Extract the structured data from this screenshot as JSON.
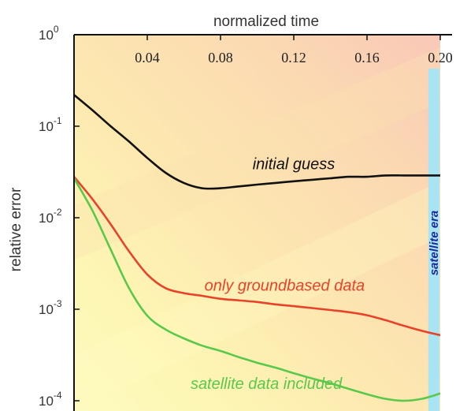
{
  "chart_data": {
    "type": "line",
    "xlabel": "normalized time",
    "ylabel": "relative error",
    "xlim": [
      0,
      0.2
    ],
    "ylog": true,
    "ylim": [
      0.0001,
      1
    ],
    "x_ticks": [
      0.04,
      0.08,
      0.12,
      0.16,
      0.2
    ],
    "x_tick_labels": [
      "0.04",
      "0.08",
      "0.12",
      "0.16",
      "0.20"
    ],
    "y_ticks": [
      1,
      0.1,
      0.01,
      0.001,
      0.0001
    ],
    "y_tick_labels": [
      {
        "base": "10",
        "exp": "0"
      },
      {
        "base": "10",
        "exp": "-1"
      },
      {
        "base": "10",
        "exp": "-2"
      },
      {
        "base": "10",
        "exp": "-3"
      },
      {
        "base": "10",
        "exp": "-4"
      }
    ],
    "series": [
      {
        "name": "initial guess",
        "color": "#111111",
        "x": [
          0,
          0.01,
          0.02,
          0.03,
          0.04,
          0.05,
          0.06,
          0.07,
          0.08,
          0.09,
          0.1,
          0.11,
          0.12,
          0.13,
          0.14,
          0.15,
          0.16,
          0.17,
          0.18,
          0.19,
          0.2
        ],
        "y": [
          0.22,
          0.15,
          0.1,
          0.068,
          0.045,
          0.031,
          0.024,
          0.021,
          0.021,
          0.022,
          0.023,
          0.024,
          0.025,
          0.026,
          0.027,
          0.028,
          0.028,
          0.029,
          0.029,
          0.029,
          0.029
        ]
      },
      {
        "name": "only groundbased data",
        "color": "#e8422a",
        "x": [
          0,
          0.01,
          0.02,
          0.03,
          0.04,
          0.05,
          0.06,
          0.07,
          0.08,
          0.09,
          0.1,
          0.11,
          0.12,
          0.13,
          0.14,
          0.15,
          0.16,
          0.17,
          0.18,
          0.19,
          0.2
        ],
        "y": [
          0.028,
          0.016,
          0.0085,
          0.0043,
          0.0024,
          0.0017,
          0.0015,
          0.0014,
          0.0013,
          0.00125,
          0.0012,
          0.00113,
          0.00108,
          0.00103,
          0.00098,
          0.00093,
          0.00086,
          0.00076,
          0.00066,
          0.00058,
          0.00052
        ]
      },
      {
        "name": "satellite data included",
        "color": "#5ac84a",
        "x": [
          0,
          0.01,
          0.02,
          0.03,
          0.04,
          0.05,
          0.06,
          0.07,
          0.08,
          0.09,
          0.1,
          0.11,
          0.12,
          0.13,
          0.14,
          0.15,
          0.16,
          0.17,
          0.18,
          0.19,
          0.2
        ],
        "y": [
          0.027,
          0.012,
          0.0045,
          0.0017,
          0.00085,
          0.0006,
          0.00048,
          0.0004,
          0.00035,
          0.0003,
          0.00026,
          0.00023,
          0.0002,
          0.000175,
          0.000155,
          0.000135,
          0.000118,
          0.000105,
          0.0001,
          0.000105,
          0.00012
        ]
      }
    ],
    "annotations": [
      {
        "text": "initial guess",
        "color": "#111111",
        "x": 0.12,
        "y": 0.034
      },
      {
        "text": "only groundbased data",
        "color": "#e8422a",
        "x": 0.115,
        "y": 0.0016
      },
      {
        "text": "satellite data included",
        "color": "#5ac84a",
        "x": 0.105,
        "y": 0.000135
      }
    ],
    "highlight_band": {
      "label": "satellite era",
      "x_from": 0.1935,
      "x_to": 0.1995,
      "color": "#a8e4f4",
      "label_color": "#1a2a9a"
    },
    "background": "gradient from pale red/orange (top right) to pale yellow (bottom left)",
    "grid": false,
    "legend": "none"
  }
}
